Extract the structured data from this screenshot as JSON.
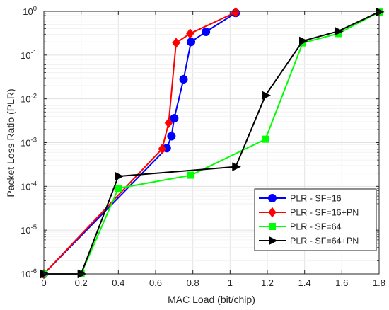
{
  "chart_data": {
    "type": "line",
    "xlabel": "MAC Load (bit/chip)",
    "ylabel": "Packet Loss Ratio (PLR)",
    "xlim": [
      0,
      1.8
    ],
    "ylim": [
      1e-06,
      1
    ],
    "y_scale": "log",
    "grid": true,
    "legend_position": "lower-right",
    "x_ticks": [
      "0",
      "0.2",
      "0.4",
      "0.6",
      "0.8",
      "1",
      "1.2",
      "1.4",
      "1.6",
      "1.8"
    ],
    "x_tick_values": [
      0,
      0.2,
      0.4,
      0.6,
      0.8,
      1.0,
      1.2,
      1.4,
      1.6,
      1.8
    ],
    "y_ticks": [
      {
        "base": "10",
        "exp": "-6",
        "value": 1e-06
      },
      {
        "base": "10",
        "exp": "-5",
        "value": 1e-05
      },
      {
        "base": "10",
        "exp": "-4",
        "value": 0.0001
      },
      {
        "base": "10",
        "exp": "-3",
        "value": 0.001
      },
      {
        "base": "10",
        "exp": "-2",
        "value": 0.01
      },
      {
        "base": "10",
        "exp": "-1",
        "value": 0.1
      },
      {
        "base": "10",
        "exp": "0",
        "value": 1
      }
    ],
    "series": [
      {
        "name": "PLR - SF=16",
        "color": "#0000ff",
        "marker": "circle",
        "x": [
          0,
          0.66,
          0.685,
          0.7,
          0.75,
          0.79,
          0.87,
          1.03
        ],
        "y": [
          1e-06,
          0.00075,
          0.0014,
          0.0036,
          0.028,
          0.2,
          0.34,
          0.92
        ]
      },
      {
        "name": "PLR - SF=16+PN",
        "color": "#ff0000",
        "marker": "diamond",
        "x": [
          0,
          0.635,
          0.67,
          0.71,
          0.785,
          1.03
        ],
        "y": [
          1e-06,
          0.00072,
          0.0028,
          0.19,
          0.31,
          0.95
        ]
      },
      {
        "name": "PLR - SF=64",
        "color": "#00ff00",
        "marker": "square",
        "x": [
          0,
          0.2,
          0.4,
          0.79,
          1.19,
          1.39,
          1.58,
          1.8
        ],
        "y": [
          1e-06,
          1e-06,
          9e-05,
          0.00018,
          0.0012,
          0.19,
          0.31,
          0.96
        ]
      },
      {
        "name": "PLR - SF=64+PN",
        "color": "#000000",
        "marker": "triangle-right",
        "x": [
          0,
          0.2,
          0.4,
          1.03,
          1.19,
          1.39,
          1.58,
          1.8
        ],
        "y": [
          1e-06,
          1e-06,
          0.00017,
          0.00028,
          0.012,
          0.21,
          0.35,
          0.97
        ]
      }
    ]
  }
}
